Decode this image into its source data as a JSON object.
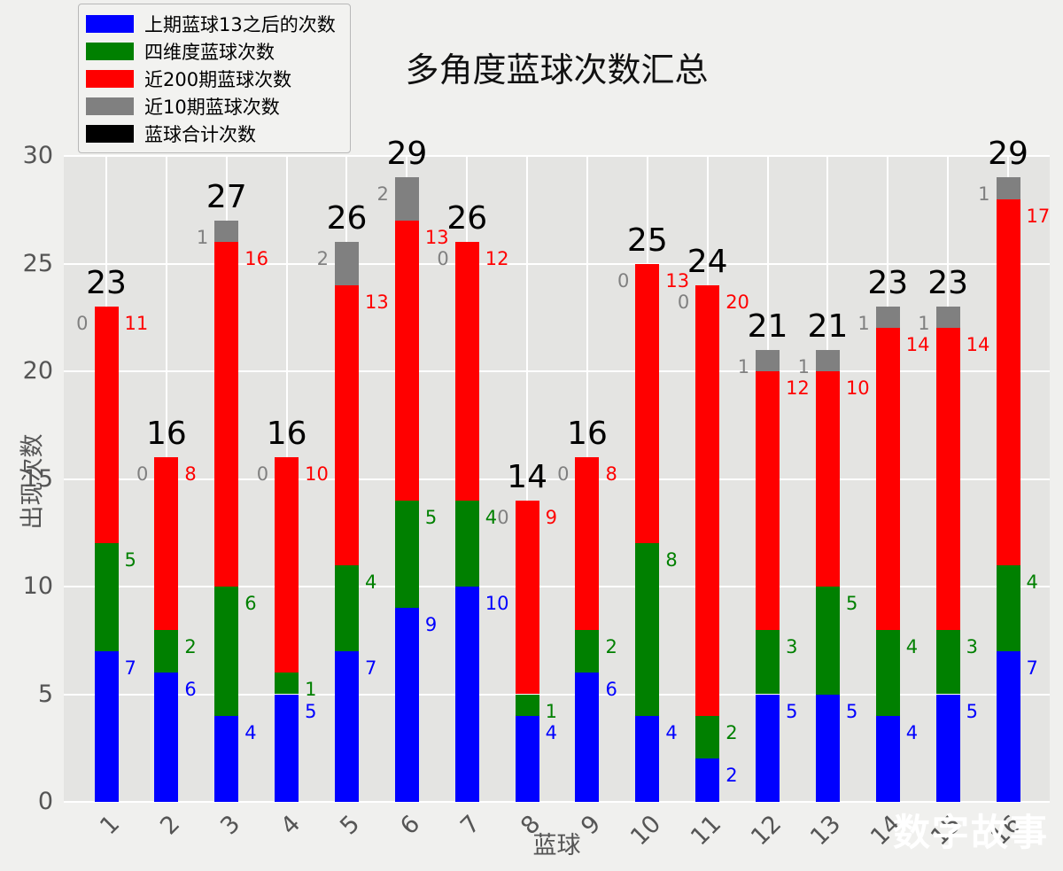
{
  "chart_data": {
    "type": "bar",
    "stacked": true,
    "title": "多角度蓝球次数汇总",
    "xlabel": "蓝球",
    "ylabel": "出现次数",
    "ylim": [
      0,
      30
    ],
    "yticks": [
      0,
      5,
      10,
      15,
      20,
      25,
      30
    ],
    "grid": "on",
    "legend_position": "upper-left",
    "watermark": "数字故事",
    "categories": [
      "1",
      "2",
      "3",
      "4",
      "5",
      "6",
      "7",
      "8",
      "9",
      "10",
      "11",
      "12",
      "13",
      "14",
      "15",
      "16"
    ],
    "series": [
      {
        "name": "上期蓝球13之后的次数",
        "color": "#0000ff",
        "values": [
          7,
          6,
          4,
          5,
          7,
          9,
          10,
          4,
          6,
          4,
          2,
          5,
          5,
          4,
          5,
          7
        ]
      },
      {
        "name": "四维度蓝球次数",
        "color": "#008000",
        "values": [
          5,
          2,
          6,
          1,
          4,
          5,
          4,
          1,
          2,
          8,
          2,
          3,
          5,
          4,
          3,
          4
        ]
      },
      {
        "name": "近200期蓝球次数",
        "color": "#ff0000",
        "values": [
          11,
          8,
          16,
          10,
          13,
          13,
          12,
          9,
          8,
          13,
          20,
          12,
          10,
          14,
          14,
          17
        ]
      },
      {
        "name": "近10期蓝球次数",
        "color": "#808080",
        "values": [
          0,
          0,
          1,
          0,
          2,
          2,
          0,
          0,
          0,
          0,
          0,
          1,
          1,
          1,
          1,
          1
        ]
      }
    ],
    "totals": {
      "name": "蓝球合计次数",
      "color": "#000000",
      "values": [
        23,
        16,
        27,
        16,
        26,
        29,
        26,
        14,
        16,
        25,
        24,
        21,
        21,
        23,
        23,
        29
      ]
    }
  }
}
